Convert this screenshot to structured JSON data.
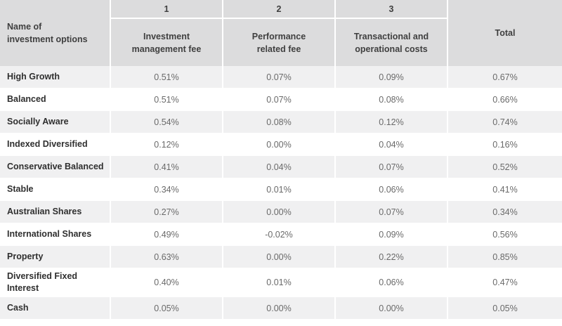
{
  "header": {
    "name_label_line1": "Name of",
    "name_label_line2": "investment options",
    "col_numbers": [
      "1",
      "2",
      "3"
    ],
    "col1_line1": "Investment",
    "col1_line2": "management fee",
    "col2_line1": "Performance",
    "col2_line2": "related fee",
    "col3_line1": "Transactional and",
    "col3_line2": "operational costs",
    "total_label": "Total"
  },
  "rows": [
    {
      "name": "High Growth",
      "mgmt": "0.51%",
      "perf": "0.07%",
      "trans": "0.09%",
      "total": "0.67%"
    },
    {
      "name": "Balanced",
      "mgmt": "0.51%",
      "perf": "0.07%",
      "trans": "0.08%",
      "total": "0.66%"
    },
    {
      "name": "Socially Aware",
      "mgmt": "0.54%",
      "perf": "0.08%",
      "trans": "0.12%",
      "total": "0.74%"
    },
    {
      "name": "Indexed Diversified",
      "mgmt": "0.12%",
      "perf": "0.00%",
      "trans": "0.04%",
      "total": "0.16%"
    },
    {
      "name": "Conservative Balanced",
      "mgmt": "0.41%",
      "perf": "0.04%",
      "trans": "0.07%",
      "total": "0.52%"
    },
    {
      "name": "Stable",
      "mgmt": "0.34%",
      "perf": "0.01%",
      "trans": "0.06%",
      "total": "0.41%"
    },
    {
      "name": "Australian Shares",
      "mgmt": "0.27%",
      "perf": "0.00%",
      "trans": "0.07%",
      "total": "0.34%"
    },
    {
      "name": "International Shares",
      "mgmt": "0.49%",
      "perf": "-0.02%",
      "trans": "0.09%",
      "total": "0.56%"
    },
    {
      "name": "Property",
      "mgmt": "0.63%",
      "perf": "0.00%",
      "trans": "0.22%",
      "total": "0.85%"
    },
    {
      "name_line1": "Diversified Fixed",
      "name_line2": "Interest",
      "mgmt": "0.40%",
      "perf": "0.01%",
      "trans": "0.06%",
      "total": "0.47%"
    },
    {
      "name": "Cash",
      "mgmt": "0.05%",
      "perf": "0.00%",
      "trans": "0.00%",
      "total": "0.05%"
    }
  ],
  "colors": {
    "header_bg": "#dcdcdd",
    "row_shade": "#f0f0f1",
    "row_white": "#ffffff"
  }
}
